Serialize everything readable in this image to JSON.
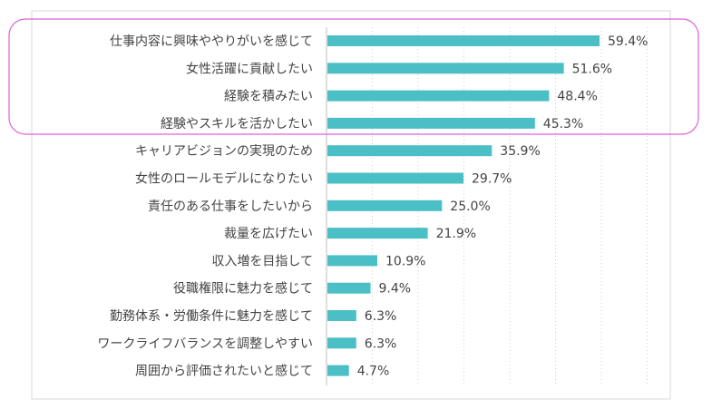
{
  "chart_data": {
    "type": "bar",
    "orientation": "horizontal",
    "categories": [
      "仕事内容に興味ややりがいを感じて",
      "女性活躍に貢献したい",
      "経験を積みたい",
      "経験やスキルを活かしたい",
      "キャリアビジョンの実現のため",
      "女性のロールモデルになりたい",
      "責任のある仕事をしたいから",
      "裁量を広げたい",
      "収入増を目指して",
      "役職権限に魅力を感じて",
      "勤務体系・労働条件に魅力を感じて",
      "ワークライフバランスを調整しやすい",
      "周囲から評価されたいと感じて"
    ],
    "values": [
      59.4,
      51.6,
      48.4,
      45.3,
      35.9,
      29.7,
      25.0,
      21.9,
      10.9,
      9.4,
      6.3,
      6.3,
      4.7
    ],
    "value_labels": [
      "59.4%",
      "51.6%",
      "48.4%",
      "45.3%",
      "35.9%",
      "29.7%",
      "25.0%",
      "21.9%",
      "10.9%",
      "9.4%",
      "6.3%",
      "6.3%",
      "4.7%"
    ],
    "xlim": [
      0,
      70
    ],
    "grid": "vertical dotted",
    "highlight": {
      "rows": [
        0,
        1,
        2,
        3
      ],
      "color": "#e060d8"
    },
    "colors": {
      "bar": "#4bbfc6",
      "text": "#444444",
      "grid": "#cfcfcf",
      "frame": "#d9d9d9"
    }
  }
}
